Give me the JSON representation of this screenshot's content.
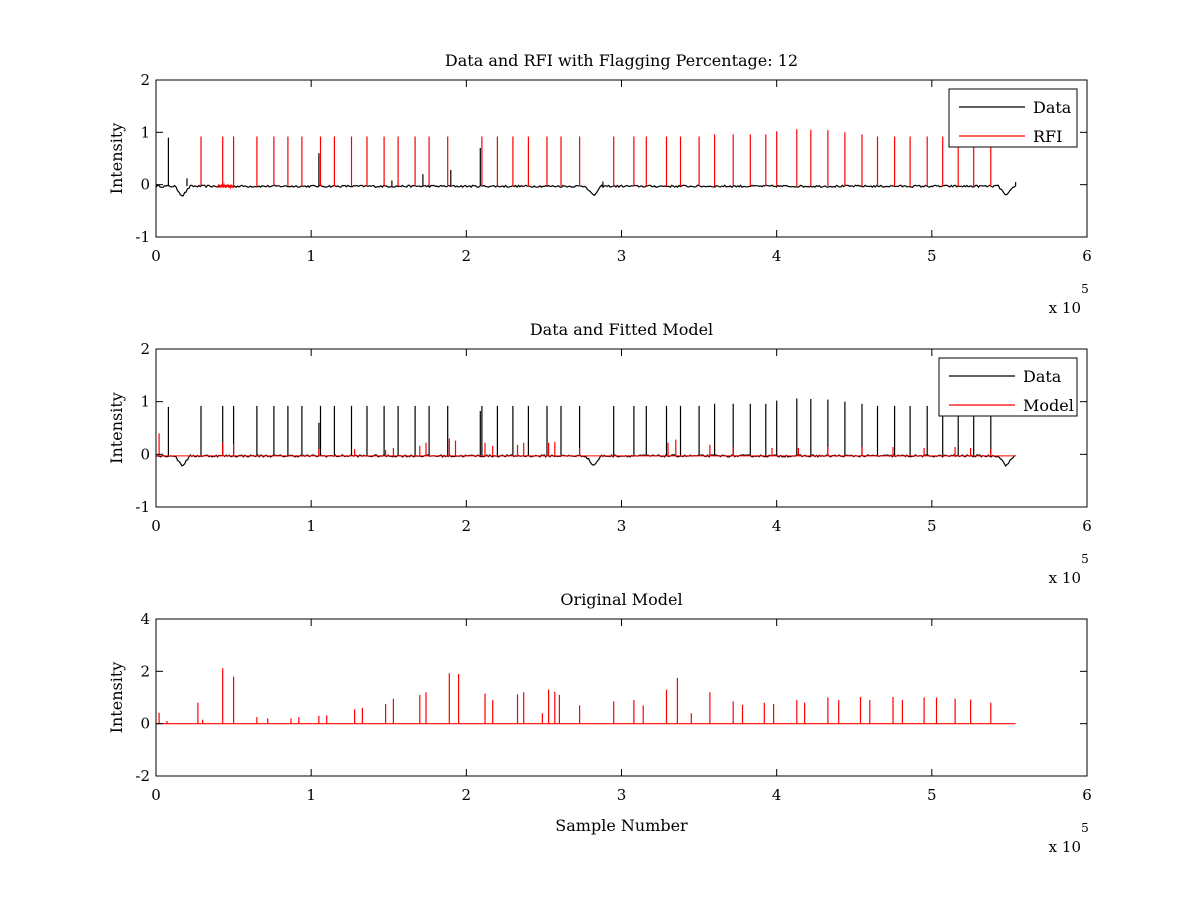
{
  "chart_data": [
    {
      "type": "line",
      "title": "Data and RFI with Flagging Percentage: 12",
      "xlabel": "",
      "ylabel": "Intensity",
      "xlim": [
        0,
        6
      ],
      "ylim": [
        -1,
        2
      ],
      "x_exponent_label": "x 10",
      "x_exponent_power": "5",
      "xticks": [
        "0",
        "1",
        "2",
        "3",
        "4",
        "5",
        "6"
      ],
      "yticks": [
        "-1",
        "0",
        "1",
        "2"
      ],
      "grid": false,
      "legend_position": "top-right",
      "baseline": -0.03,
      "series": [
        {
          "name": "Data",
          "color": "#000000",
          "spikes": [
            [
              0.08,
              0.9
            ],
            [
              1.9,
              0.28
            ],
            [
              2.09,
              0.7
            ],
            [
              1.05,
              0.6
            ],
            [
              1.72,
              0.2
            ],
            [
              1.52,
              0.08
            ],
            [
              0.2,
              0.12
            ],
            [
              2.88,
              0.06
            ],
            [
              5.54,
              0.05
            ]
          ],
          "dips": [
            [
              0.17,
              -0.22
            ],
            [
              2.82,
              -0.22
            ],
            [
              5.48,
              -0.22
            ]
          ]
        },
        {
          "name": "RFI",
          "color": "#ff0000",
          "spikes": [
            [
              0.29,
              0.92
            ],
            [
              0.43,
              0.92
            ],
            [
              0.5,
              0.92
            ],
            [
              0.65,
              0.92
            ],
            [
              0.76,
              0.92
            ],
            [
              0.85,
              0.92
            ],
            [
              0.94,
              0.92
            ],
            [
              1.06,
              0.92
            ],
            [
              1.15,
              0.92
            ],
            [
              1.26,
              0.92
            ],
            [
              1.36,
              0.92
            ],
            [
              1.47,
              0.92
            ],
            [
              1.56,
              0.92
            ],
            [
              1.67,
              0.92
            ],
            [
              1.76,
              0.92
            ],
            [
              1.88,
              0.92
            ],
            [
              2.1,
              0.92
            ],
            [
              2.2,
              0.92
            ],
            [
              2.3,
              0.92
            ],
            [
              2.4,
              0.92
            ],
            [
              2.52,
              0.92
            ],
            [
              2.61,
              0.92
            ],
            [
              2.73,
              0.92
            ],
            [
              2.95,
              0.92
            ],
            [
              3.08,
              0.92
            ],
            [
              3.16,
              0.92
            ],
            [
              3.29,
              0.92
            ],
            [
              3.38,
              0.92
            ],
            [
              3.5,
              0.92
            ],
            [
              3.6,
              0.96
            ],
            [
              3.72,
              0.96
            ],
            [
              3.83,
              0.96
            ],
            [
              3.93,
              0.96
            ],
            [
              4.0,
              1.02
            ],
            [
              4.13,
              1.06
            ],
            [
              4.22,
              1.05
            ],
            [
              4.33,
              1.04
            ],
            [
              4.44,
              1.0
            ],
            [
              4.55,
              0.96
            ],
            [
              4.65,
              0.92
            ],
            [
              4.76,
              0.92
            ],
            [
              4.86,
              0.92
            ],
            [
              4.97,
              0.92
            ],
            [
              5.07,
              0.92
            ],
            [
              5.17,
              0.92
            ],
            [
              5.27,
              0.92
            ],
            [
              5.38,
              0.92
            ]
          ],
          "flagged_segments": [
            [
              0.4,
              0.5
            ]
          ]
        }
      ]
    },
    {
      "type": "line",
      "title": "Data and Fitted Model",
      "xlabel": "",
      "ylabel": "Intensity",
      "xlim": [
        0,
        6
      ],
      "ylim": [
        -1,
        2
      ],
      "x_exponent_label": "x 10",
      "x_exponent_power": "5",
      "xticks": [
        "0",
        "1",
        "2",
        "3",
        "4",
        "5",
        "6"
      ],
      "yticks": [
        "-1",
        "0",
        "1",
        "2"
      ],
      "grid": false,
      "legend_position": "top-right",
      "baseline": -0.03,
      "series": [
        {
          "name": "Data",
          "color": "#000000",
          "spikes": [
            [
              0.08,
              0.9
            ],
            [
              0.29,
              0.92
            ],
            [
              0.43,
              0.92
            ],
            [
              0.5,
              0.92
            ],
            [
              0.65,
              0.92
            ],
            [
              0.76,
              0.92
            ],
            [
              0.85,
              0.92
            ],
            [
              0.94,
              0.92
            ],
            [
              1.05,
              0.6
            ],
            [
              1.06,
              0.92
            ],
            [
              1.15,
              0.92
            ],
            [
              1.26,
              0.92
            ],
            [
              1.36,
              0.92
            ],
            [
              1.47,
              0.92
            ],
            [
              1.56,
              0.92
            ],
            [
              1.67,
              0.92
            ],
            [
              1.76,
              0.92
            ],
            [
              1.88,
              0.92
            ],
            [
              2.09,
              0.82
            ],
            [
              2.1,
              0.92
            ],
            [
              2.2,
              0.92
            ],
            [
              2.3,
              0.92
            ],
            [
              2.4,
              0.92
            ],
            [
              2.52,
              0.92
            ],
            [
              2.61,
              0.92
            ],
            [
              2.73,
              0.92
            ],
            [
              2.95,
              0.92
            ],
            [
              3.08,
              0.92
            ],
            [
              3.16,
              0.92
            ],
            [
              3.29,
              0.92
            ],
            [
              3.38,
              0.92
            ],
            [
              3.5,
              0.92
            ],
            [
              3.6,
              0.96
            ],
            [
              3.72,
              0.96
            ],
            [
              3.83,
              0.96
            ],
            [
              3.93,
              0.96
            ],
            [
              4.0,
              1.02
            ],
            [
              4.13,
              1.06
            ],
            [
              4.22,
              1.05
            ],
            [
              4.33,
              1.04
            ],
            [
              4.44,
              1.0
            ],
            [
              4.55,
              0.96
            ],
            [
              4.65,
              0.92
            ],
            [
              4.76,
              0.92
            ],
            [
              4.86,
              0.92
            ],
            [
              4.97,
              0.92
            ],
            [
              5.07,
              0.92
            ],
            [
              5.17,
              0.92
            ],
            [
              5.27,
              0.92
            ],
            [
              5.38,
              0.92
            ]
          ],
          "dips": [
            [
              0.17,
              -0.22
            ],
            [
              2.82,
              -0.22
            ],
            [
              5.48,
              -0.22
            ]
          ]
        },
        {
          "name": "Model",
          "color": "#ff0000",
          "spikes": [
            [
              0.02,
              0.4
            ],
            [
              0.43,
              0.22
            ],
            [
              0.5,
              0.2
            ],
            [
              1.05,
              0.1
            ],
            [
              1.28,
              0.1
            ],
            [
              1.48,
              0.08
            ],
            [
              1.53,
              0.12
            ],
            [
              1.7,
              0.16
            ],
            [
              1.74,
              0.22
            ],
            [
              1.89,
              0.3
            ],
            [
              1.93,
              0.26
            ],
            [
              2.12,
              0.22
            ],
            [
              2.17,
              0.16
            ],
            [
              2.33,
              0.18
            ],
            [
              2.37,
              0.22
            ],
            [
              2.53,
              0.22
            ],
            [
              2.57,
              0.24
            ],
            [
              2.73,
              0.12
            ],
            [
              3.3,
              0.22
            ],
            [
              3.35,
              0.28
            ],
            [
              3.57,
              0.18
            ],
            [
              3.72,
              0.14
            ],
            [
              3.97,
              0.12
            ],
            [
              4.14,
              0.12
            ],
            [
              4.33,
              0.14
            ],
            [
              4.55,
              0.14
            ],
            [
              4.75,
              0.14
            ],
            [
              4.95,
              0.12
            ],
            [
              5.15,
              0.14
            ],
            [
              5.25,
              0.12
            ],
            [
              5.38,
              0.1
            ]
          ],
          "dips": []
        }
      ]
    },
    {
      "type": "line",
      "title": "Original Model",
      "xlabel": "Sample Number",
      "ylabel": "Intensity",
      "xlim": [
        0,
        6
      ],
      "ylim": [
        -2,
        4
      ],
      "x_exponent_label": "x 10",
      "x_exponent_power": "5",
      "xticks": [
        "0",
        "1",
        "2",
        "3",
        "4",
        "5",
        "6"
      ],
      "yticks": [
        "-2",
        "0",
        "2",
        "4"
      ],
      "grid": false,
      "legend_position": "none",
      "baseline": 0,
      "series": [
        {
          "name": "",
          "color": "#ff0000",
          "spikes": [
            [
              0.02,
              0.42
            ],
            [
              0.07,
              0.1
            ],
            [
              0.27,
              0.8
            ],
            [
              0.3,
              0.15
            ],
            [
              0.43,
              2.12
            ],
            [
              0.5,
              1.8
            ],
            [
              0.65,
              0.25
            ],
            [
              0.72,
              0.2
            ],
            [
              0.87,
              0.2
            ],
            [
              0.92,
              0.25
            ],
            [
              1.05,
              0.3
            ],
            [
              1.1,
              0.32
            ],
            [
              1.28,
              0.55
            ],
            [
              1.33,
              0.6
            ],
            [
              1.48,
              0.75
            ],
            [
              1.53,
              0.95
            ],
            [
              1.7,
              1.1
            ],
            [
              1.74,
              1.2
            ],
            [
              1.89,
              1.93
            ],
            [
              1.95,
              1.9
            ],
            [
              2.12,
              1.15
            ],
            [
              2.17,
              0.9
            ],
            [
              2.33,
              1.12
            ],
            [
              2.37,
              1.2
            ],
            [
              2.49,
              0.4
            ],
            [
              2.53,
              1.3
            ],
            [
              2.57,
              1.22
            ],
            [
              2.6,
              1.1
            ],
            [
              2.73,
              0.7
            ],
            [
              2.95,
              0.85
            ],
            [
              3.08,
              0.9
            ],
            [
              3.14,
              0.7
            ],
            [
              3.29,
              1.3
            ],
            [
              3.36,
              1.75
            ],
            [
              3.45,
              0.4
            ],
            [
              3.57,
              1.2
            ],
            [
              3.72,
              0.85
            ],
            [
              3.78,
              0.72
            ],
            [
              3.92,
              0.8
            ],
            [
              3.98,
              0.75
            ],
            [
              4.13,
              0.9
            ],
            [
              4.18,
              0.8
            ],
            [
              4.33,
              1.0
            ],
            [
              4.4,
              0.9
            ],
            [
              4.54,
              1.02
            ],
            [
              4.6,
              0.9
            ],
            [
              4.75,
              1.02
            ],
            [
              4.81,
              0.9
            ],
            [
              4.95,
              1.0
            ],
            [
              5.03,
              1.0
            ],
            [
              5.15,
              0.95
            ],
            [
              5.25,
              0.92
            ],
            [
              5.38,
              0.8
            ]
          ],
          "dips": []
        }
      ]
    }
  ]
}
